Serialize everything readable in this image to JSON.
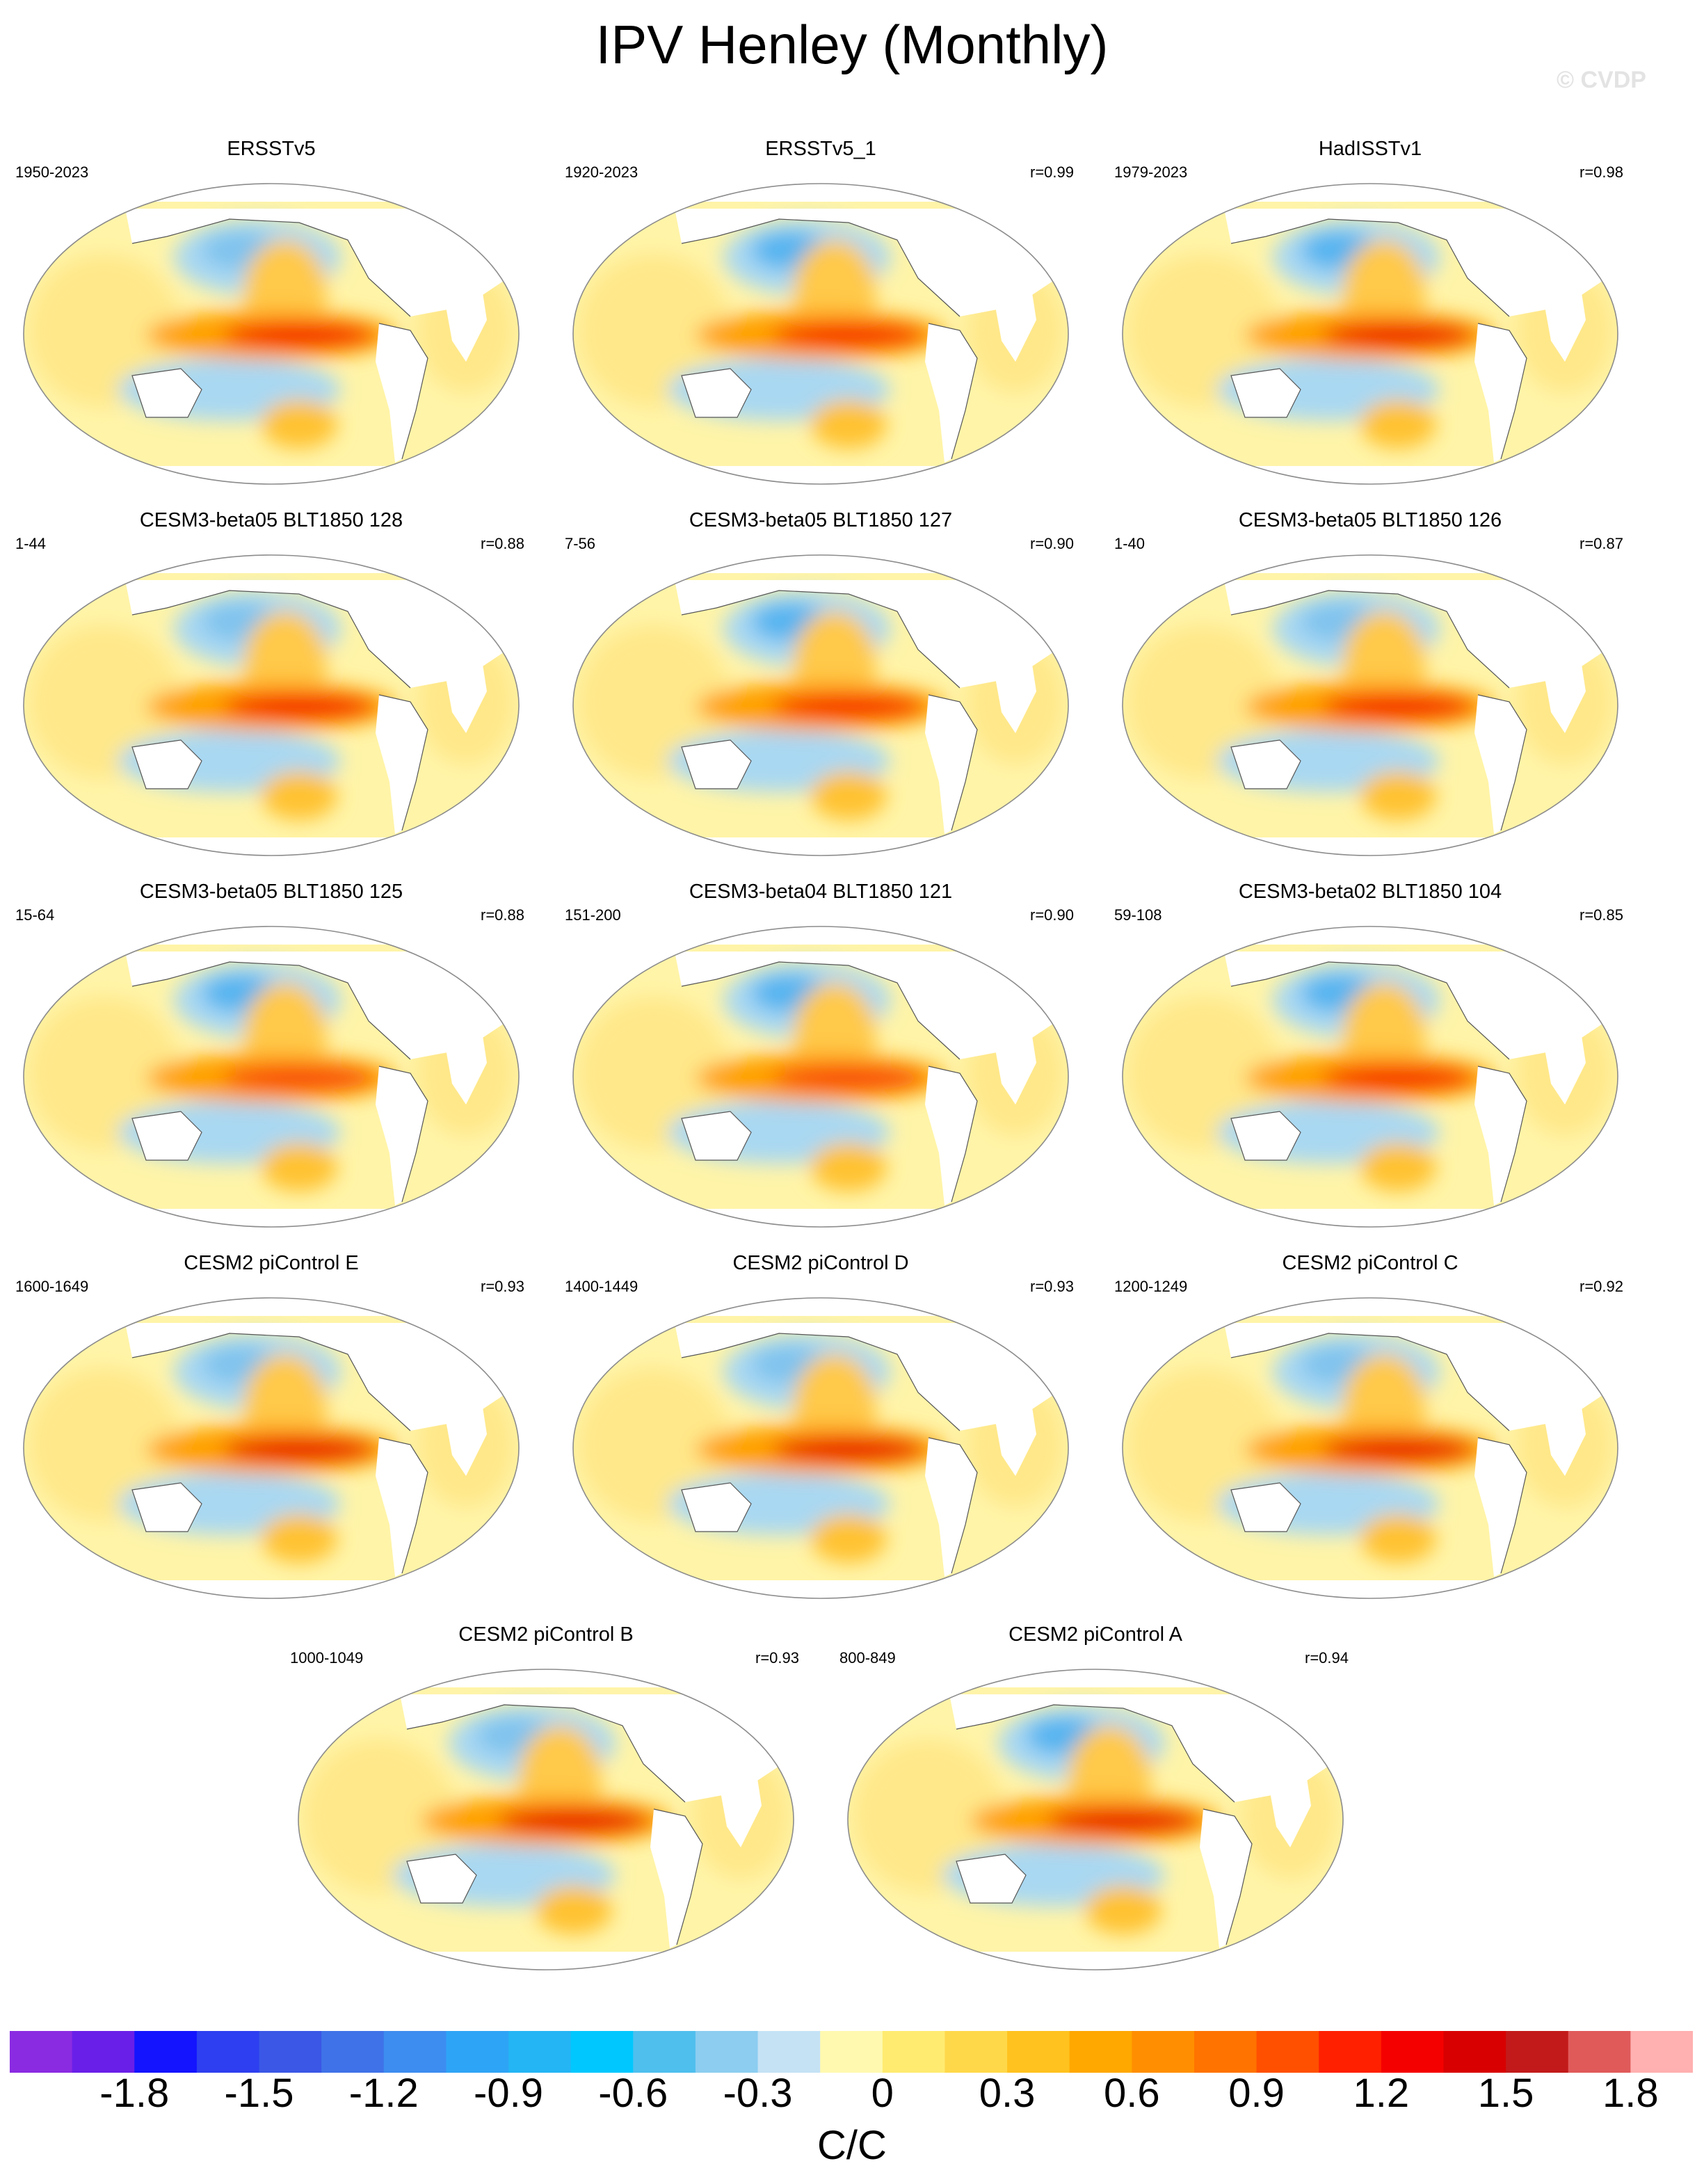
{
  "title": "IPV Henley (Monthly)",
  "watermark": "© CVDP",
  "colors": {
    "land": "#ffffff",
    "outline": "#8c8c8c",
    "coast": "#555555"
  },
  "panels": [
    {
      "title": "ERSSTv5",
      "period": "1950-2023",
      "r": "",
      "warm": "#f41b00",
      "cold": "#7fc3ee"
    },
    {
      "title": "ERSSTv5_1",
      "period": "1920-2023",
      "r": "r=0.99",
      "warm": "#f62a05",
      "cold": "#54b4f0"
    },
    {
      "title": "HadISSTv1",
      "period": "1979-2023",
      "r": "r=0.98",
      "warm": "#ee1100",
      "cold": "#54b4f0"
    },
    {
      "title": "CESM3-beta05 BLT1850 128",
      "period": "1-44",
      "r": "r=0.88",
      "warm": "#f41b00",
      "cold": "#7fc3ee"
    },
    {
      "title": "CESM3-beta05 BLT1850 127",
      "period": "7-56",
      "r": "r=0.90",
      "warm": "#f62a05",
      "cold": "#54b4f0"
    },
    {
      "title": "CESM3-beta05 BLT1850 126",
      "period": "1-40",
      "r": "r=0.87",
      "warm": "#f41b00",
      "cold": "#7fc3ee"
    },
    {
      "title": "CESM3-beta05 BLT1850 125",
      "period": "15-64",
      "r": "r=0.88",
      "warm": "#f84a08",
      "cold": "#54b4f0"
    },
    {
      "title": "CESM3-beta04 BLT1850 121",
      "period": "151-200",
      "r": "r=0.90",
      "warm": "#f84a08",
      "cold": "#54b4f0"
    },
    {
      "title": "CESM3-beta02 BLT1850 104",
      "period": "59-108",
      "r": "r=0.85",
      "warm": "#f62a05",
      "cold": "#54b4f0"
    },
    {
      "title": "CESM2 piControl E",
      "period": "1600-1649",
      "r": "r=0.93",
      "warm": "#e80000",
      "cold": "#7fc3ee"
    },
    {
      "title": "CESM2 piControl D",
      "period": "1400-1449",
      "r": "r=0.93",
      "warm": "#e80000",
      "cold": "#7fc3ee"
    },
    {
      "title": "CESM2 piControl C",
      "period": "1200-1249",
      "r": "r=0.92",
      "warm": "#e80000",
      "cold": "#7fc3ee"
    },
    {
      "title": "CESM2 piControl B",
      "period": "1000-1049",
      "r": "r=0.93",
      "warm": "#e80000",
      "cold": "#7fc3ee"
    },
    {
      "title": "CESM2 piControl A",
      "period": "800-849",
      "r": "r=0.94",
      "warm": "#e80000",
      "cold": "#54b4f0"
    }
  ],
  "colorbar": {
    "units": "C/C",
    "colors": [
      "#8a2be2",
      "#6a1fe8",
      "#1414ff",
      "#2d3ff0",
      "#3a57e6",
      "#3f72e8",
      "#3d8cf0",
      "#2ea4f6",
      "#24b5f5",
      "#00c8ff",
      "#4fbfee",
      "#8ccdf0",
      "#c5e2f5",
      "#fff9b0",
      "#ffeb70",
      "#ffd84a",
      "#ffc21e",
      "#ffa800",
      "#ff8f00",
      "#ff7300",
      "#ff5000",
      "#ff2000",
      "#f50000",
      "#d80000",
      "#c21a1a",
      "#e05a5a",
      "#ffb0b0"
    ],
    "ticks": [
      "-1.8",
      "-1.5",
      "-1.2",
      "-0.9",
      "-0.6",
      "-0.3",
      "0",
      "0.3",
      "0.6",
      "0.9",
      "1.2",
      "1.5",
      "1.8"
    ]
  }
}
